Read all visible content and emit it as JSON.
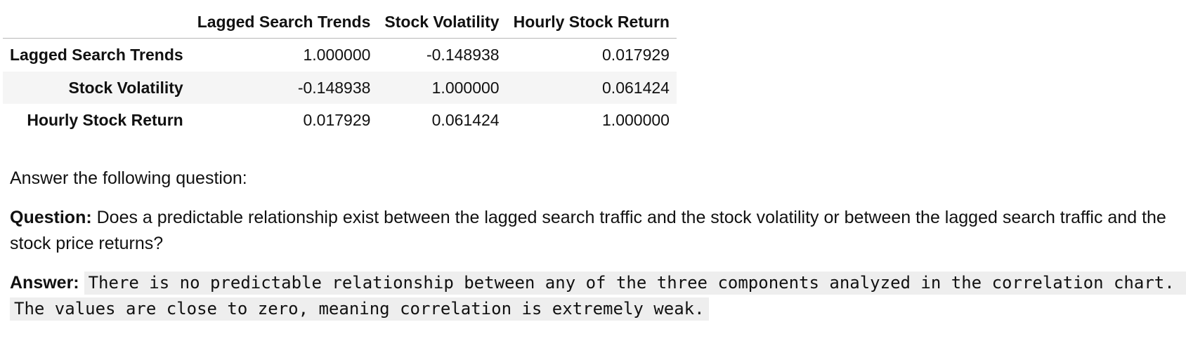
{
  "correlation_table": {
    "columns": [
      "Lagged Search Trends",
      "Stock Volatility",
      "Hourly Stock Return"
    ],
    "rows": [
      {
        "label": "Lagged Search Trends",
        "values": [
          "1.000000",
          "-0.148938",
          "0.017929"
        ]
      },
      {
        "label": "Stock Volatility",
        "values": [
          "-0.148938",
          "1.000000",
          "0.061424"
        ]
      },
      {
        "label": "Hourly Stock Return",
        "values": [
          "0.017929",
          "0.061424",
          "1.000000"
        ]
      }
    ]
  },
  "markdown": {
    "intro": "Answer the following question:",
    "question_label": "Question:",
    "question_text": " Does a predictable relationship exist between the lagged search traffic and the stock volatility or between the lagged search traffic and the stock price returns?",
    "answer_label": "Answer:",
    "answer_text": "There is no predictable relationship between any of the three components analyzed in the correlation chart. The values are close to zero, meaning correlation is extremely weak."
  }
}
